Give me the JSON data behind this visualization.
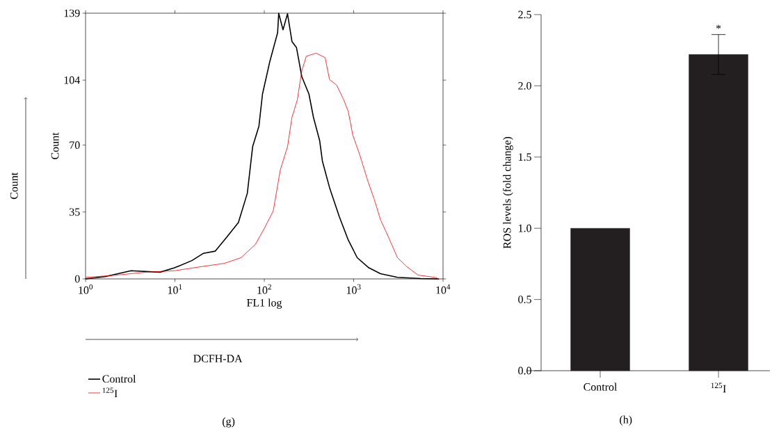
{
  "chart_data": [
    {
      "type": "line",
      "xlabel": "FL1 log",
      "ylabel": "Count",
      "log": "x",
      "legend": "bottom",
      "xlim": [
        1,
        10000
      ],
      "ylim": [
        0,
        139
      ],
      "xticks": [
        {
          "value": 1,
          "label": "10$^{0}$"
        },
        {
          "value": 10,
          "label": "10$^{1}$"
        },
        {
          "value": 100,
          "label": "10$^{2}$"
        },
        {
          "value": 1000,
          "label": "10$^{3}$"
        },
        {
          "value": 10000,
          "label": "10$^{4}$"
        }
      ],
      "yticks": [
        0,
        35,
        70,
        104,
        139
      ],
      "annotations": [
        "Count",
        "DCFH-DA",
        "(g)"
      ],
      "series": [
        {
          "name": "Control",
          "color": "#000000",
          "x": [
            1,
            1.65,
            3.23,
            6.8,
            9.9,
            15.5,
            20.9,
            28.2,
            38,
            51.3,
            64.6,
            74.1,
            87.1,
            95.5,
            115,
            141,
            145,
            162,
            182,
            204,
            229,
            263,
            316,
            355,
            417,
            447,
            537,
            692,
            871,
            1096,
            1479,
            1995,
            3090,
            5623,
            9000
          ],
          "values": [
            0,
            1.2,
            4.3,
            3.5,
            5.8,
            9.6,
            13.4,
            14.5,
            21.8,
            29.5,
            44.8,
            69.2,
            79.9,
            96.7,
            113.5,
            128.8,
            139,
            130.3,
            138.7,
            124.2,
            121.1,
            105.8,
            96.7,
            84.5,
            72.2,
            61.6,
            47.8,
            32.5,
            20.3,
            11.1,
            5.8,
            2.7,
            0.8,
            0.2,
            0
          ]
        },
        {
          "name": "$^{125}$I",
          "color": "#ff0000",
          "x": [
            1,
            2.24,
            4.68,
            10,
            20.9,
            35.5,
            55,
            79.4,
            100,
            126,
            151,
            182,
            204,
            234,
            263,
            295,
            380,
            479,
            537,
            646,
            776,
            871,
            977,
            1175,
            1413,
            1698,
            1995,
            2455,
            3090,
            3890,
            5248,
            8128,
            9000
          ],
          "values": [
            0.8,
            2.0,
            3.5,
            4.3,
            6.6,
            8.1,
            11.1,
            18.0,
            26.4,
            35.6,
            57.0,
            69.2,
            84.5,
            93.6,
            108.9,
            116.5,
            118.1,
            115.8,
            104.3,
            101.3,
            93.6,
            87.5,
            75.3,
            64.6,
            52.4,
            41.7,
            31.0,
            21.8,
            11.1,
            6.6,
            2.0,
            0.8,
            0
          ]
        }
      ]
    },
    {
      "type": "bar",
      "ylabel": "ROS levels (fold change)",
      "categories": [
        "Control",
        "$^{125}$I"
      ],
      "values": [
        1.0,
        2.22
      ],
      "errors": [
        null,
        0.14
      ],
      "color": "#231f20",
      "ylim": [
        0,
        2.5
      ],
      "yticks": [
        {
          "value": 0,
          "label": "0.0"
        },
        {
          "value": 0.5,
          "label": "0.5"
        },
        {
          "value": 1.0,
          "label": "1.0"
        },
        {
          "value": 1.5,
          "label": "1.5"
        },
        {
          "value": 2.0,
          "label": "2.0"
        },
        {
          "value": 2.5,
          "label": "2.5"
        }
      ],
      "annotations": [
        "*",
        "(h)"
      ]
    }
  ]
}
